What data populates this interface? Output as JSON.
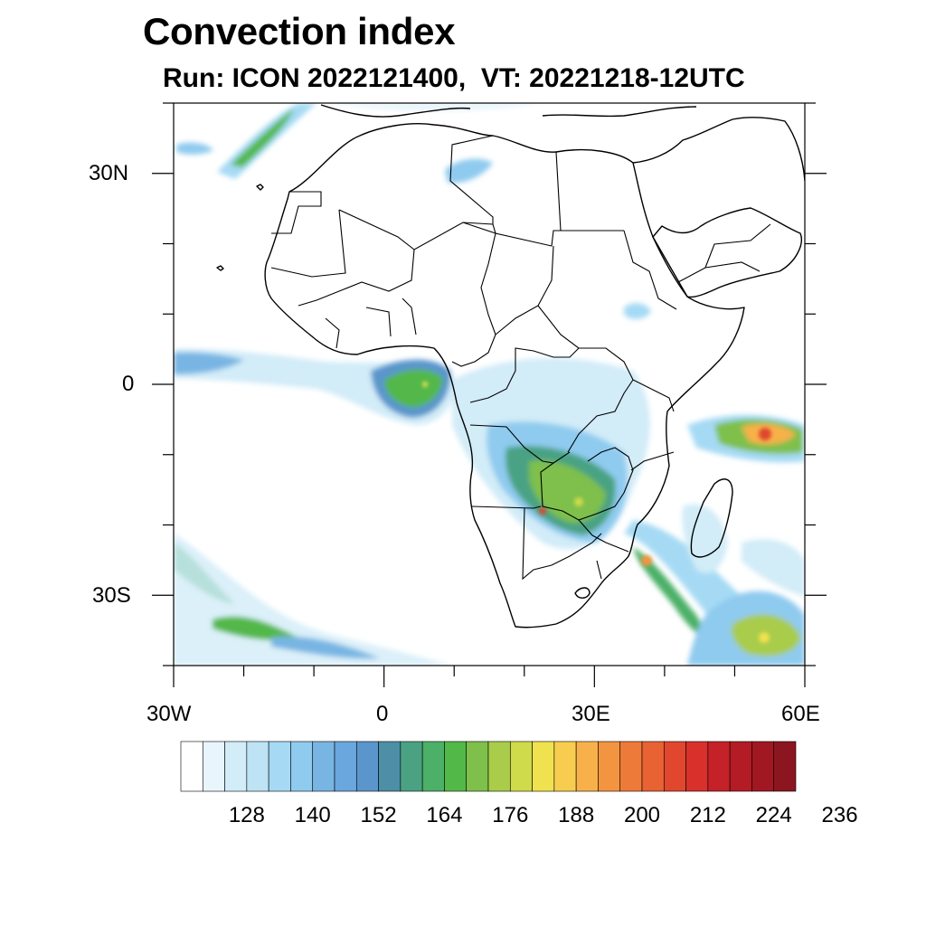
{
  "title": "Convection index",
  "subtitle": "Run: ICON 2022121400,  VT: 20221218-12UTC",
  "map": {
    "lon_range": [
      -30,
      60
    ],
    "lat_range": [
      -40,
      40
    ],
    "y_tick_labels": [
      "30N",
      "0",
      "30S"
    ],
    "x_tick_labels": [
      "30W",
      "0",
      "30E",
      "60E"
    ]
  },
  "colorbar": {
    "colors": [
      "#ffffff",
      "#e8f5fc",
      "#d2ecf8",
      "#bde3f5",
      "#a6daf4",
      "#8fcbef",
      "#78b5e3",
      "#6aa7de",
      "#5a96cc",
      "#4c8fa6",
      "#4aa283",
      "#4cb068",
      "#52b848",
      "#7ec04b",
      "#a9cc4b",
      "#cfdb4a",
      "#f0e24f",
      "#f8cc4f",
      "#f8b14a",
      "#f39440",
      "#ee7a39",
      "#e86233",
      "#e0472e",
      "#d9302c",
      "#c42128",
      "#b31c25",
      "#a11822",
      "#8c161f"
    ],
    "labels": [
      "128",
      "140",
      "152",
      "164",
      "176",
      "188",
      "200",
      "212",
      "224",
      "236"
    ]
  }
}
